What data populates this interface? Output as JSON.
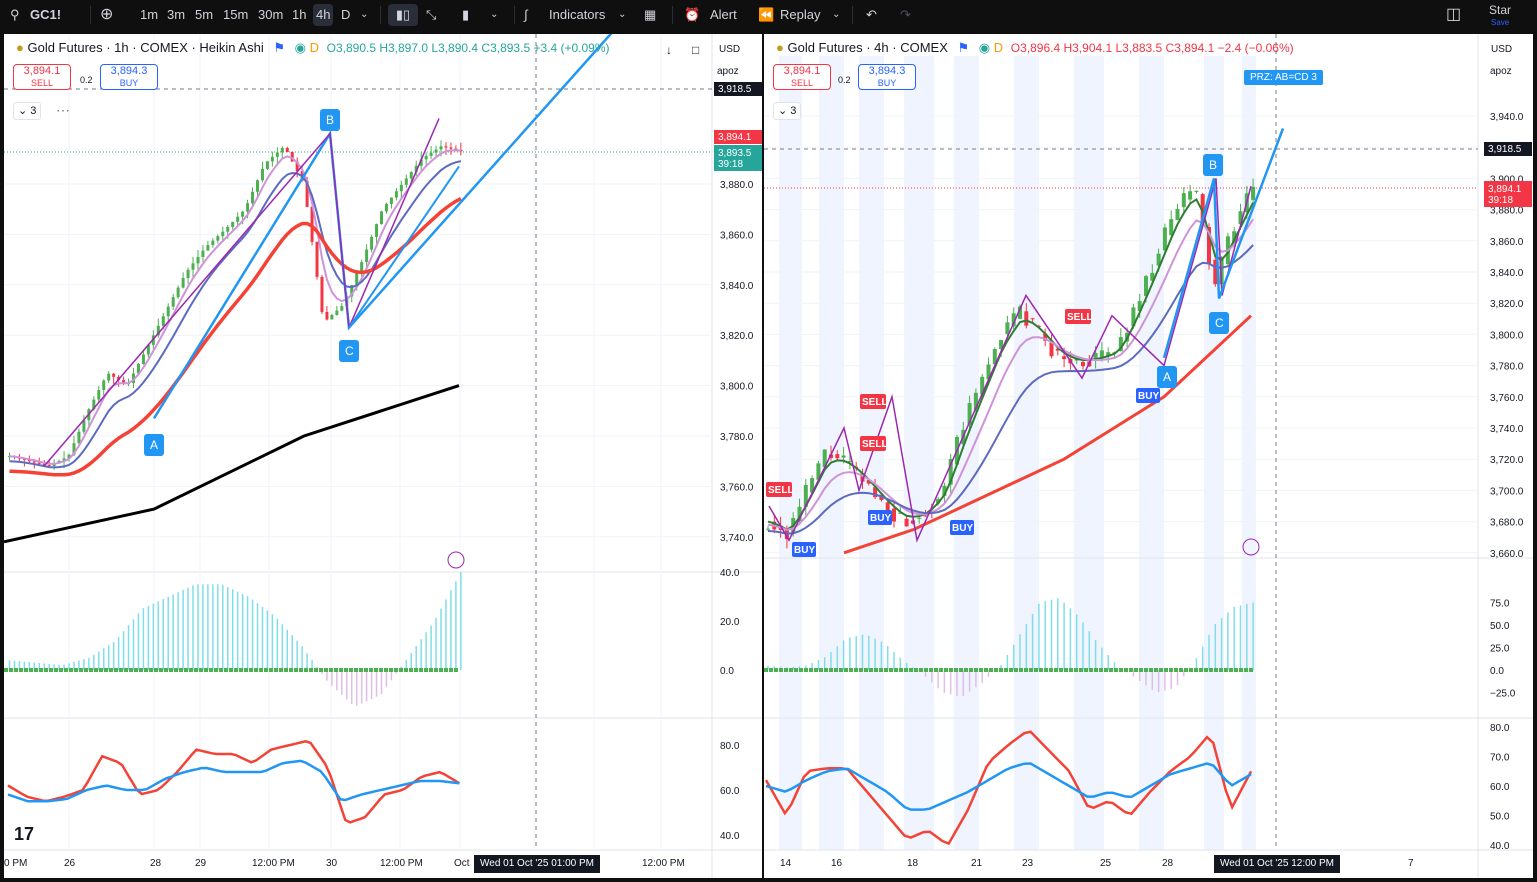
{
  "toolbar": {
    "symbol": "GC1!",
    "intervals": [
      "1m",
      "3m",
      "5m",
      "15m",
      "30m",
      "1h",
      "4h",
      "D"
    ],
    "active_interval": "4h",
    "indicators_label": "Indicators",
    "alert_label": "Alert",
    "replay_label": "Replay",
    "star_label": "Star",
    "save_label": "Save"
  },
  "left_chart": {
    "title": "Gold Futures · 1h · COMEX · Heikin Ashi",
    "ohlc": "O3,890.5  H3,897.0  L3,890.4  C3,893.5  +3.4 (+0.09%)",
    "sell_price": "3,894.1",
    "sell_label": "SELL",
    "spread": "0.2",
    "buy_price": "3,894.3",
    "buy_label": "BUY",
    "indicator_count": "3",
    "currency": "USD",
    "scale_label": "apoz",
    "price_ticks": [
      "3,880.0",
      "3,860.0",
      "3,840.0",
      "3,820.0",
      "3,800.0",
      "3,780.0",
      "3,760.0",
      "3,740.0"
    ],
    "dashed_price": "3,918.5",
    "last_price": "3,894.1",
    "close_price": "3,893.5",
    "countdown": "39:18",
    "osc_ticks": [
      "40.0",
      "20.0",
      "0.0"
    ],
    "rsi_ticks": [
      "80.0",
      "60.0",
      "40.0"
    ],
    "time_ticks": [
      "0 PM",
      "26",
      "28",
      "29",
      "12:00 PM",
      "30",
      "12:00 PM",
      "Oct",
      "12:00 PM"
    ],
    "crosshair_time": "Wed 01 Oct '25   01:00 PM",
    "pattern_labels": [
      "A",
      "B",
      "C"
    ]
  },
  "right_chart": {
    "title": "Gold Futures · 4h · COMEX",
    "ohlc": "O3,896.4  H3,904.1  L3,883.5  C3,894.1  −2.4 (−0.06%)",
    "sell_price": "3,894.1",
    "sell_label": "SELL",
    "spread": "0.2",
    "buy_price": "3,894.3",
    "buy_label": "BUY",
    "indicator_count": "3",
    "currency": "USD",
    "scale_label": "apoz",
    "price_ticks": [
      "3,940.0",
      "3,920.0",
      "3,900.0",
      "3,880.0",
      "3,860.0",
      "3,840.0",
      "3,820.0",
      "3,800.0",
      "3,780.0",
      "3,760.0",
      "3,740.0",
      "3,720.0",
      "3,700.0",
      "3,680.0",
      "3,660.0"
    ],
    "dashed_price": "3,918.5",
    "last_price": "3,894.1",
    "countdown": "39:18",
    "osc_ticks": [
      "75.0",
      "50.0",
      "25.0",
      "0.0",
      "−25.0"
    ],
    "rsi_ticks": [
      "80.0",
      "70.0",
      "60.0",
      "50.0",
      "40.0"
    ],
    "time_ticks": [
      "14",
      "16",
      "18",
      "21",
      "23",
      "25",
      "28",
      "7"
    ],
    "crosshair_time": "Wed 01 Oct '25   12:00 PM",
    "prz_label": "PRZ: AB=CD 3",
    "signal_labels": [
      "SELL",
      "SELL",
      "SELL",
      "SELL",
      "BUY",
      "BUY",
      "BUY",
      "BUY"
    ],
    "pattern_labels": [
      "A",
      "B",
      "C"
    ]
  },
  "colors": {
    "bull": "#26a69a",
    "bull_green": "#4caf50",
    "bear": "#f23645",
    "pattern": "#2196f3",
    "ma_purple": "#9c27b0",
    "ma_violet": "#ce93d8",
    "ma_blue": "#5c6bc0",
    "ma_red": "#f44336",
    "ma_black": "#000000"
  }
}
